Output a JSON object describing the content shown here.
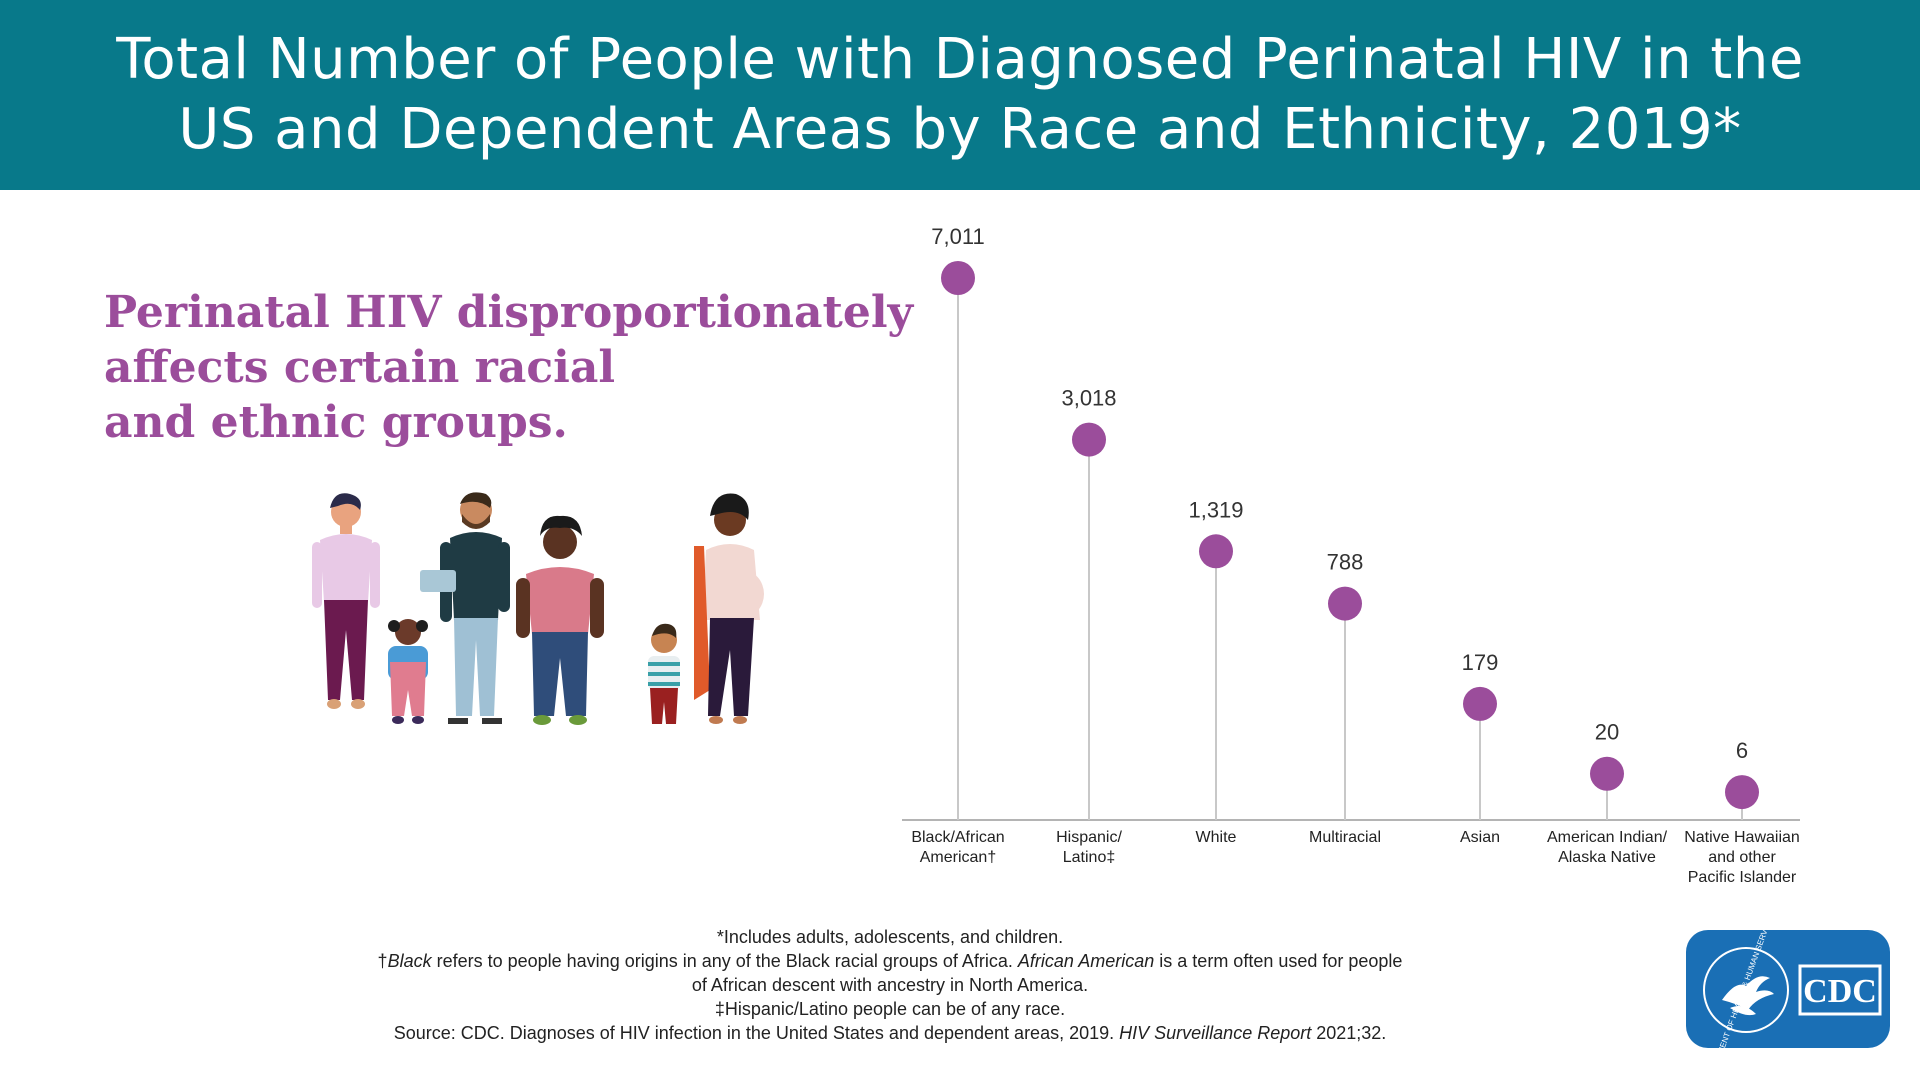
{
  "header": {
    "title_line1": "Total Number of People with Diagnosed Perinatal HIV in the",
    "title_line2": "US and Dependent Areas by Race and Ethnicity, 2019*"
  },
  "subheading": {
    "line1": "Perinatal HIV disproportionately",
    "line2": "affects certain racial",
    "line3": "and ethnic groups."
  },
  "chart_data": {
    "type": "scatter",
    "categories": [
      [
        "Black/African",
        "American†"
      ],
      [
        "Hispanic/",
        "Latino‡"
      ],
      [
        "White"
      ],
      [
        "Multiracial"
      ],
      [
        "Asian"
      ],
      [
        "American Indian/",
        "Alaska Native"
      ],
      [
        "Native Hawaiian",
        "and other",
        "Pacific Islander"
      ]
    ],
    "values": [
      7011,
      3018,
      1319,
      788,
      179,
      20,
      6
    ],
    "value_labels": [
      "7,011",
      "3,018",
      "1,319",
      "788",
      "179",
      "20",
      "6"
    ],
    "ylim": [
      0,
      7011
    ],
    "grid": false,
    "colors": {
      "dot": "#9b4d9b",
      "stem": "#c8c8c8",
      "axis": "#b4b4b4"
    }
  },
  "footnotes": {
    "line1": "*Includes adults, adolescents, and children.",
    "line2_mark": "†",
    "line2_term1": "Black",
    "line2_mid": " refers to people having origins in any of the Black racial groups of Africa. ",
    "line2_term2": "African American",
    "line2_end": " is a term often used for people",
    "line3": "of African descent with ancestry in North America.",
    "line4": "‡Hispanic/Latino people can be of any race.",
    "line5_start": "Source: CDC. Diagnoses of HIV infection in the United States and dependent areas, 2019. ",
    "line5_italic": "HIV Surveillance Report",
    "line5_end": " 2021;32."
  },
  "logo": {
    "text": "CDC",
    "seal_text": "DEPARTMENT OF HEALTH & HUMAN SERVICES USA"
  },
  "colors": {
    "header_bg": "#08798a",
    "accent_purple": "#9b4d9b",
    "logo_bg": "#1a6fb5"
  }
}
